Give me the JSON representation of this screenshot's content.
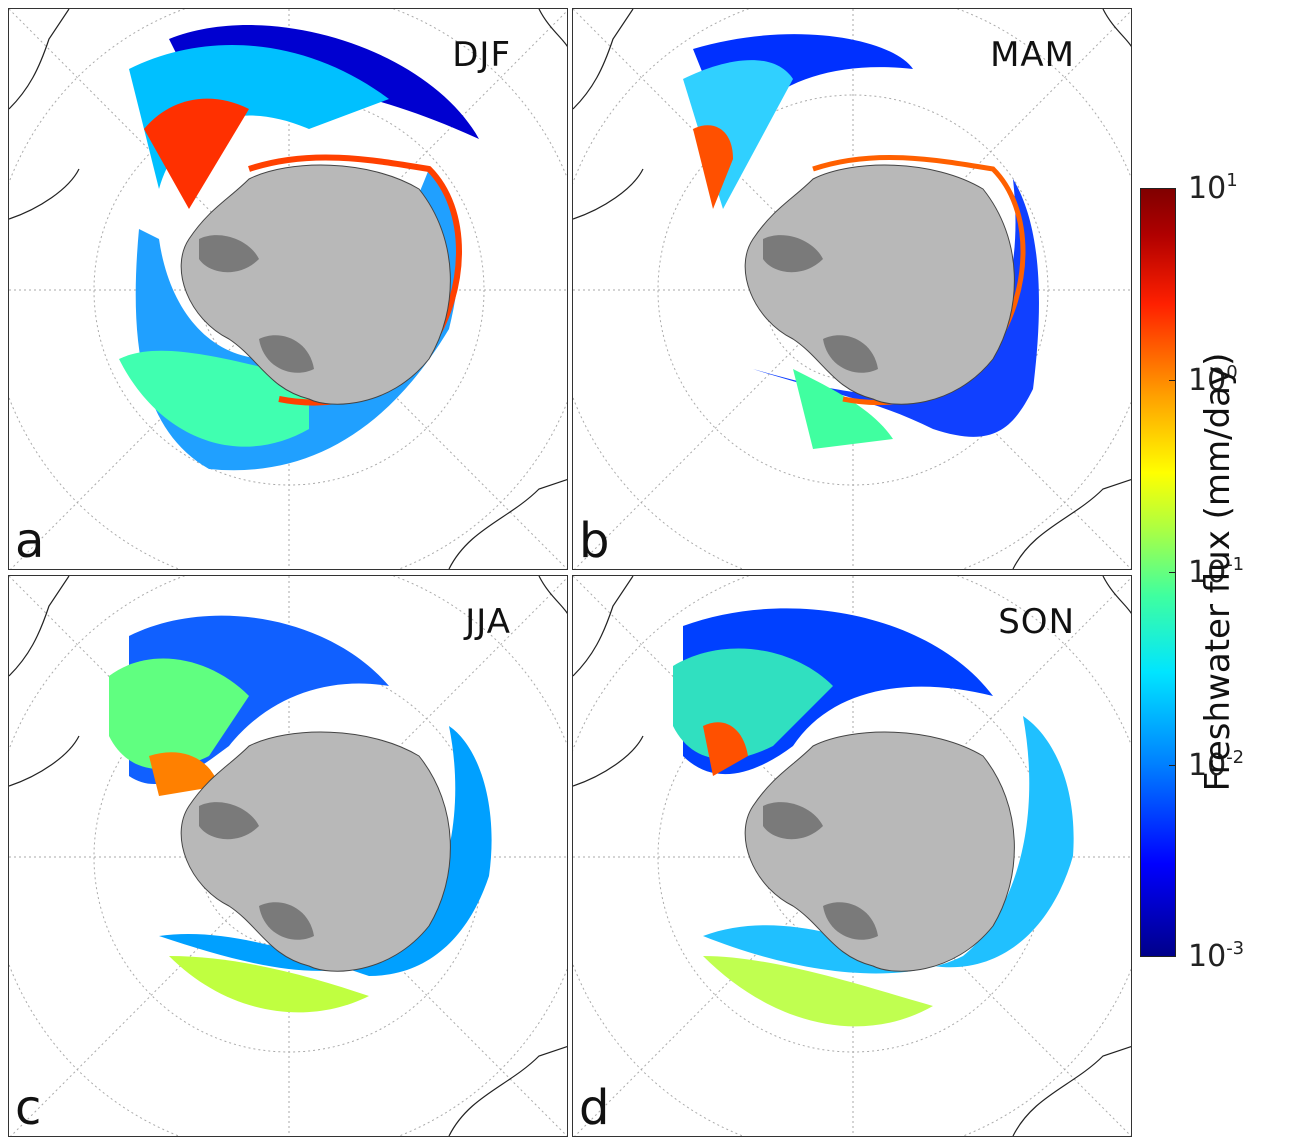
{
  "panels": [
    {
      "letter": "a",
      "season": "DJF"
    },
    {
      "letter": "b",
      "season": "MAM"
    },
    {
      "letter": "c",
      "season": "JJA"
    },
    {
      "letter": "d",
      "season": "SON"
    }
  ],
  "colorbar": {
    "label": "Freshwater flux (mm/day)",
    "scale": "log",
    "min": 0.001,
    "max": 10,
    "ticks": [
      {
        "base": "10",
        "exp": "1"
      },
      {
        "base": "10",
        "exp": "0"
      },
      {
        "base": "10",
        "exp": "-1"
      },
      {
        "base": "10",
        "exp": "-2"
      },
      {
        "base": "10",
        "exp": "-3"
      }
    ],
    "colormap": "jet"
  },
  "colors": {
    "land": "#b8b8b8",
    "ice_shelf": "#7a7a7a",
    "coastline": "#222222",
    "grid": "#aaaaaa"
  }
}
